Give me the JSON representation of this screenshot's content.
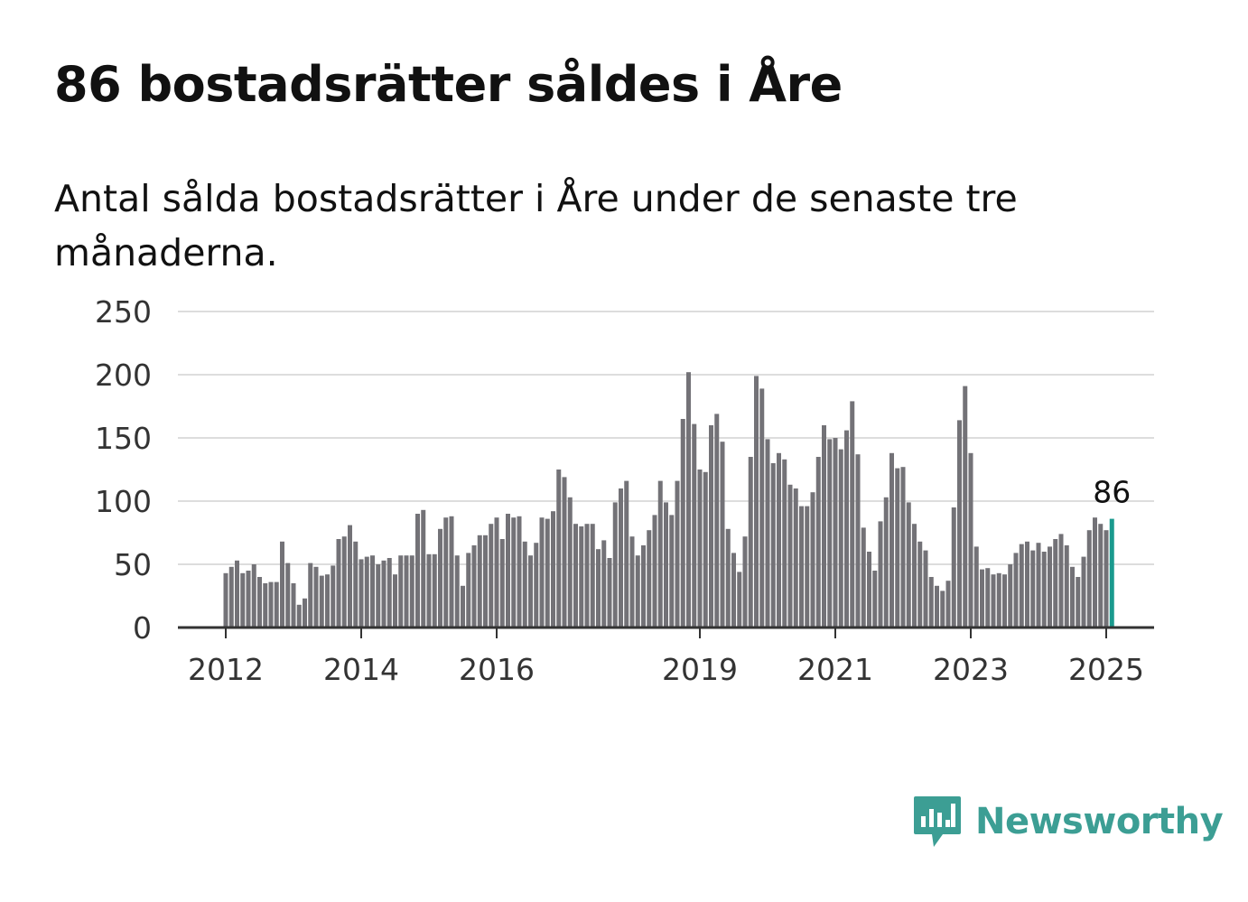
{
  "title": "86 bostadsrätter såldes i Åre",
  "subtitle": "Antal sålda bostadsrätter i Åre under de senaste tre månaderna.",
  "brand": {
    "name": "Newsworthy",
    "color": "#3c9e94"
  },
  "colors": {
    "bar": "#737277",
    "highlight": "#1a9a8e",
    "grid": "#dddddd",
    "axis": "#333333"
  },
  "chart_data": {
    "type": "bar",
    "start": "2012-01",
    "interval": "month",
    "values": [
      43,
      48,
      53,
      43,
      45,
      50,
      40,
      35,
      36,
      36,
      68,
      51,
      35,
      18,
      23,
      51,
      48,
      41,
      42,
      49,
      70,
      72,
      81,
      68,
      54,
      56,
      57,
      50,
      53,
      55,
      42,
      57,
      57,
      57,
      90,
      93,
      58,
      58,
      78,
      87,
      88,
      57,
      33,
      59,
      65,
      73,
      73,
      82,
      87,
      70,
      90,
      87,
      88,
      68,
      57,
      67,
      87,
      86,
      92,
      125,
      119,
      103,
      82,
      80,
      82,
      82,
      62,
      69,
      55,
      99,
      110,
      116,
      72,
      57,
      65,
      77,
      89,
      116,
      99,
      89,
      116,
      165,
      202,
      161,
      125,
      123,
      160,
      169,
      147,
      78,
      59,
      44,
      72,
      135,
      199,
      189,
      149,
      130,
      138,
      133,
      113,
      110,
      96,
      96,
      107,
      135,
      160,
      149,
      150,
      141,
      156,
      179,
      137,
      79,
      60,
      45,
      84,
      103,
      138,
      126,
      127,
      99,
      82,
      68,
      61,
      40,
      33,
      29,
      37,
      95,
      164,
      191,
      138,
      64,
      46,
      47,
      42,
      43,
      42,
      50,
      59,
      66,
      68,
      61,
      67,
      60,
      64,
      70,
      74,
      65,
      48,
      40,
      56,
      77,
      87,
      82,
      77,
      86
    ],
    "highlight_index": 157,
    "highlight_label": "86",
    "ylim": [
      0,
      250
    ],
    "yticks": [
      0,
      50,
      100,
      150,
      200,
      250
    ],
    "xticks": [
      {
        "label": "2012",
        "index": 0
      },
      {
        "label": "2014",
        "index": 24
      },
      {
        "label": "2016",
        "index": 48
      },
      {
        "label": "2019",
        "index": 84
      },
      {
        "label": "2021",
        "index": 108
      },
      {
        "label": "2023",
        "index": 132
      },
      {
        "label": "2025",
        "index": 156
      }
    ],
    "grid": true
  }
}
